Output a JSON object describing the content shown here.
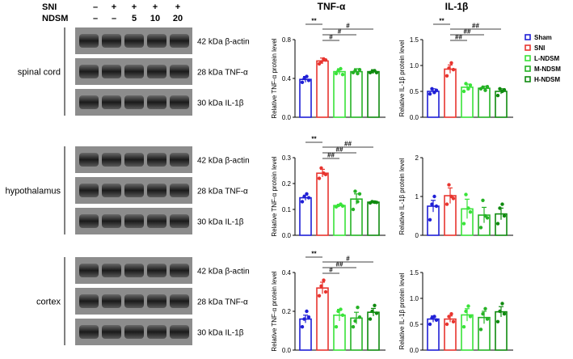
{
  "western_blot": {
    "treatment_rows": [
      {
        "label": "SNI",
        "values": [
          "–",
          "+",
          "+",
          "+",
          "+"
        ]
      },
      {
        "label": "NDSM",
        "values": [
          "–",
          "–",
          "5",
          "10",
          "20"
        ]
      }
    ],
    "blots": [
      {
        "tissue": "spinal cord",
        "bands": [
          "42 kDa β-actin",
          "28 kDa TNF-α",
          "30 kDa IL-1β"
        ]
      },
      {
        "tissue": "hypothalamus",
        "bands": [
          "42 kDa β-actin",
          "28 kDa TNF-α",
          "30 kDa IL-1β"
        ]
      },
      {
        "tissue": "cortex",
        "bands": [
          "42 kDa β-actin",
          "28 kDa TNF-α",
          "30 kDa IL-1β"
        ]
      }
    ]
  },
  "column_titles": [
    "TNF-α",
    "IL-1β"
  ],
  "legend": [
    {
      "label": "Sham",
      "color": "#1f1fd6"
    },
    {
      "label": "SNI",
      "color": "#e8352f"
    },
    {
      "label": "L-NDSM",
      "color": "#39e339"
    },
    {
      "label": "M-NDSM",
      "color": "#25b225"
    },
    {
      "label": "H-NDSM",
      "color": "#0f8a0f"
    }
  ],
  "chart_data": [
    {
      "type": "bar",
      "tissue": "spinal cord",
      "title": "",
      "ylabel": "Relative TNF-α protein level",
      "ylim": [
        0,
        0.8
      ],
      "yticks": [
        "0.0",
        "0.4",
        "0.8"
      ],
      "categories": [
        "Sham",
        "SNI",
        "L-NDSM",
        "M-NDSM",
        "H-NDSM"
      ],
      "values": [
        0.39,
        0.58,
        0.47,
        0.47,
        0.47
      ],
      "errors": [
        0.03,
        0.03,
        0.03,
        0.03,
        0.02
      ],
      "points": [
        [
          0.36,
          0.4,
          0.42,
          0.38
        ],
        [
          0.55,
          0.57,
          0.6,
          0.59
        ],
        [
          0.45,
          0.48,
          0.5,
          0.44
        ],
        [
          0.46,
          0.48,
          0.45,
          0.49
        ],
        [
          0.46,
          0.47,
          0.48,
          0.46
        ]
      ],
      "annotations": [
        {
          "text": "**",
          "from": 0,
          "to": 1
        },
        {
          "text": "#",
          "from": 1,
          "to": 4
        },
        {
          "text": "#",
          "from": 1,
          "to": 3
        },
        {
          "text": "#",
          "from": 1,
          "to": 2
        }
      ]
    },
    {
      "type": "bar",
      "tissue": "spinal cord",
      "title": "",
      "ylabel": "Relative IL-1β protein level",
      "ylim": [
        0,
        1.5
      ],
      "yticks": [
        "0.0",
        "0.5",
        "1.0",
        "1.5"
      ],
      "categories": [
        "Sham",
        "SNI",
        "L-NDSM",
        "M-NDSM",
        "H-NDSM"
      ],
      "values": [
        0.5,
        0.93,
        0.58,
        0.56,
        0.5
      ],
      "errors": [
        0.05,
        0.08,
        0.06,
        0.04,
        0.05
      ],
      "points": [
        [
          0.45,
          0.55,
          0.48,
          0.52
        ],
        [
          0.8,
          0.95,
          1.05,
          0.92
        ],
        [
          0.5,
          0.65,
          0.55,
          0.62
        ],
        [
          0.55,
          0.58,
          0.52,
          0.59
        ],
        [
          0.42,
          0.55,
          0.5,
          0.53
        ]
      ],
      "annotations": [
        {
          "text": "**",
          "from": 0,
          "to": 1
        },
        {
          "text": "##",
          "from": 1,
          "to": 4
        },
        {
          "text": "##",
          "from": 1,
          "to": 3
        },
        {
          "text": "##",
          "from": 1,
          "to": 2
        }
      ]
    },
    {
      "type": "bar",
      "tissue": "hypothalamus",
      "title": "",
      "ylabel": "Relative TNF-α protein level",
      "ylim": [
        0,
        0.3
      ],
      "yticks": [
        "0.0",
        "0.1",
        "0.2",
        "0.3"
      ],
      "categories": [
        "Sham",
        "SNI",
        "L-NDSM",
        "M-NDSM",
        "H-NDSM"
      ],
      "values": [
        0.145,
        0.24,
        0.115,
        0.14,
        0.128
      ],
      "errors": [
        0.01,
        0.015,
        0.005,
        0.02,
        0.005
      ],
      "points": [
        [
          0.13,
          0.15,
          0.16,
          0.145
        ],
        [
          0.22,
          0.26,
          0.24,
          0.235
        ],
        [
          0.11,
          0.115,
          0.12,
          0.113
        ],
        [
          0.1,
          0.17,
          0.13,
          0.16
        ],
        [
          0.125,
          0.13,
          0.128,
          0.127
        ]
      ],
      "annotations": [
        {
          "text": "**",
          "from": 0,
          "to": 1
        },
        {
          "text": "##",
          "from": 1,
          "to": 4
        },
        {
          "text": "##",
          "from": 1,
          "to": 3
        },
        {
          "text": "##",
          "from": 1,
          "to": 2
        }
      ]
    },
    {
      "type": "bar",
      "tissue": "hypothalamus",
      "title": "",
      "ylabel": "Relative IL-1β protein level",
      "ylim": [
        0,
        2
      ],
      "yticks": [
        "0",
        "1",
        "2"
      ],
      "categories": [
        "Sham",
        "SNI",
        "L-NDSM",
        "M-NDSM",
        "H-NDSM"
      ],
      "values": [
        0.75,
        1.02,
        0.68,
        0.52,
        0.55
      ],
      "errors": [
        0.15,
        0.2,
        0.25,
        0.2,
        0.15
      ],
      "points": [
        [
          0.4,
          0.8,
          1.0,
          0.75
        ],
        [
          0.8,
          1.3,
          1.0,
          0.95
        ],
        [
          0.3,
          1.05,
          0.7,
          0.6
        ],
        [
          0.2,
          0.9,
          0.5,
          0.45
        ],
        [
          0.3,
          0.7,
          0.8,
          0.5
        ]
      ],
      "annotations": []
    },
    {
      "type": "bar",
      "tissue": "cortex",
      "title": "",
      "ylabel": "Relative TNF-α protein level",
      "ylim": [
        0,
        0.4
      ],
      "yticks": [
        "0.0",
        "0.2",
        "0.4"
      ],
      "categories": [
        "Sham",
        "SNI",
        "L-NDSM",
        "M-NDSM",
        "H-NDSM"
      ],
      "values": [
        0.16,
        0.32,
        0.18,
        0.165,
        0.195
      ],
      "errors": [
        0.02,
        0.03,
        0.03,
        0.03,
        0.02
      ],
      "points": [
        [
          0.12,
          0.16,
          0.2,
          0.17
        ],
        [
          0.28,
          0.33,
          0.36,
          0.3
        ],
        [
          0.12,
          0.2,
          0.21,
          0.18
        ],
        [
          0.12,
          0.15,
          0.22,
          0.17
        ],
        [
          0.16,
          0.2,
          0.23,
          0.19
        ]
      ],
      "annotations": [
        {
          "text": "**",
          "from": 0,
          "to": 1
        },
        {
          "text": "#",
          "from": 1,
          "to": 4
        },
        {
          "text": "##",
          "from": 1,
          "to": 3
        },
        {
          "text": "#",
          "from": 1,
          "to": 2
        }
      ]
    },
    {
      "type": "bar",
      "tissue": "cortex",
      "title": "",
      "ylabel": "Relative IL-1β protein level",
      "ylim": [
        0,
        1.5
      ],
      "yticks": [
        "0.0",
        "0.5",
        "1.0",
        "1.5"
      ],
      "categories": [
        "Sham",
        "SNI",
        "L-NDSM",
        "M-NDSM",
        "H-NDSM"
      ],
      "values": [
        0.6,
        0.6,
        0.68,
        0.63,
        0.74
      ],
      "errors": [
        0.06,
        0.06,
        0.12,
        0.12,
        0.1
      ],
      "points": [
        [
          0.5,
          0.62,
          0.65,
          0.58
        ],
        [
          0.5,
          0.65,
          0.7,
          0.55
        ],
        [
          0.45,
          0.75,
          0.85,
          0.65
        ],
        [
          0.4,
          0.7,
          0.8,
          0.6
        ],
        [
          0.55,
          0.75,
          0.9,
          0.7
        ]
      ],
      "annotations": []
    }
  ]
}
